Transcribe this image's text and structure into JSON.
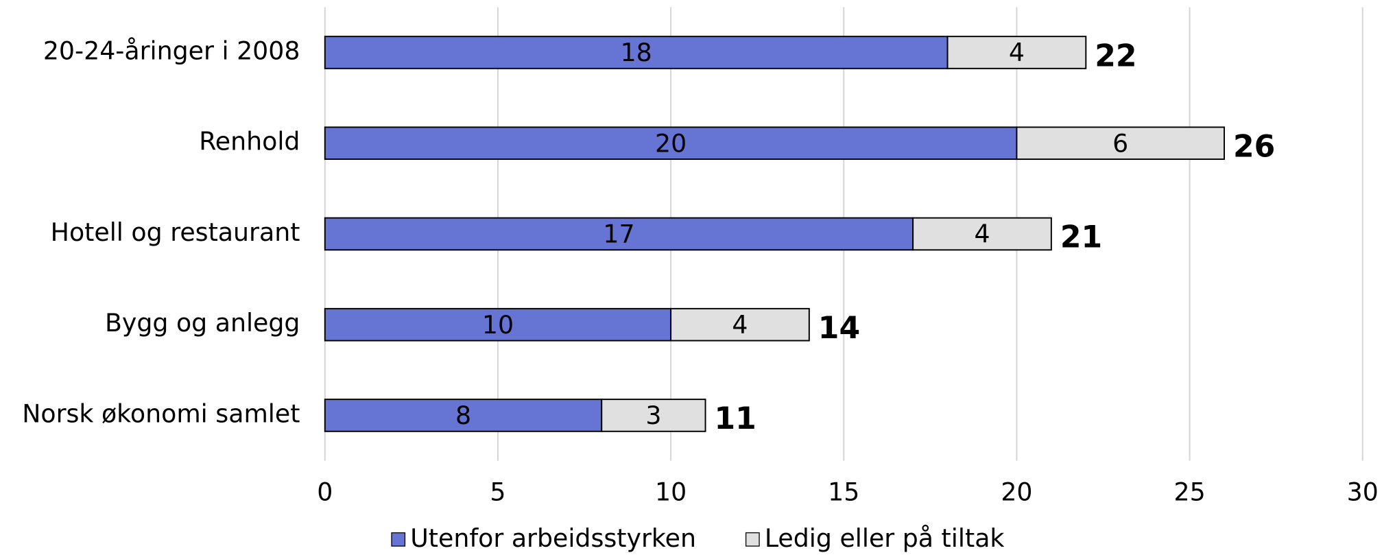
{
  "chart_data": {
    "type": "stacked_barh",
    "categories": [
      "20-24-åringer i 2008",
      "Renhold",
      "Hotell og restaurant",
      "Bygg og anlegg",
      "Norsk økonomi samlet"
    ],
    "series": [
      {
        "name": "Utenfor arbeidsstyrken",
        "color": "#6674d4",
        "values": [
          18,
          20,
          17,
          10,
          8
        ]
      },
      {
        "name": "Ledig eller på tiltak",
        "color": "#e0e0e0",
        "values": [
          4,
          6,
          4,
          4,
          3
        ]
      }
    ],
    "totals": [
      22,
      26,
      21,
      14,
      11
    ],
    "xlim": [
      0,
      30
    ],
    "xticks": [
      0,
      5,
      10,
      15,
      20,
      25,
      30
    ],
    "grid": true,
    "legend": "bottom"
  }
}
